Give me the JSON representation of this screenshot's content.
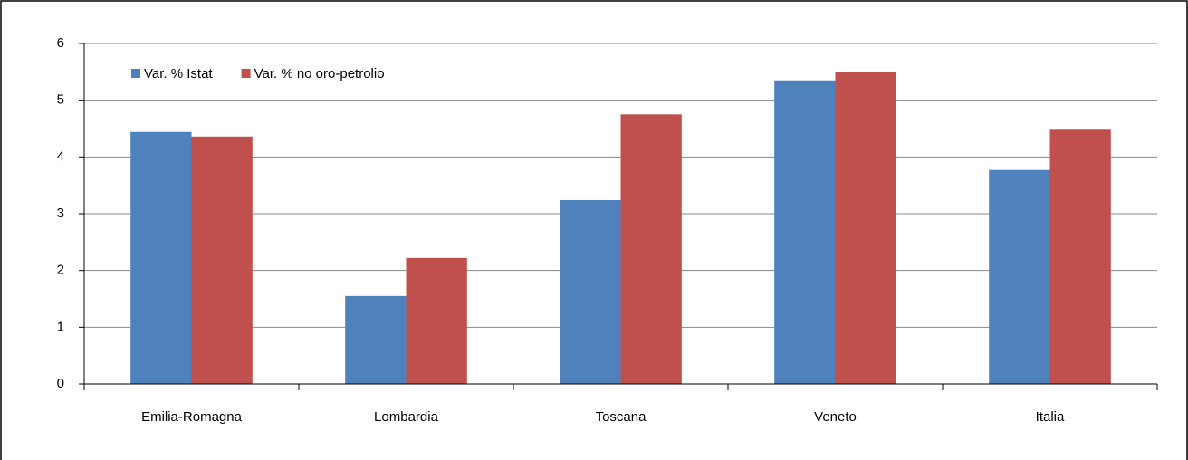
{
  "chart_data": {
    "type": "bar",
    "categories": [
      "Emilia-Romagna",
      "Lombardia",
      "Toscana",
      "Veneto",
      "Italia"
    ],
    "series": [
      {
        "name": "Var. % Istat",
        "color": "#4f81bd",
        "values": [
          4.44,
          1.55,
          3.24,
          5.35,
          3.77
        ]
      },
      {
        "name": "Var. % no oro-petrolio",
        "color": "#c0504d",
        "values": [
          4.36,
          2.22,
          4.75,
          5.5,
          4.48
        ]
      }
    ],
    "ylim": [
      0,
      6
    ],
    "yticks": [
      0,
      1,
      2,
      3,
      4,
      5,
      6
    ],
    "grid": true,
    "legend": "top-left"
  }
}
